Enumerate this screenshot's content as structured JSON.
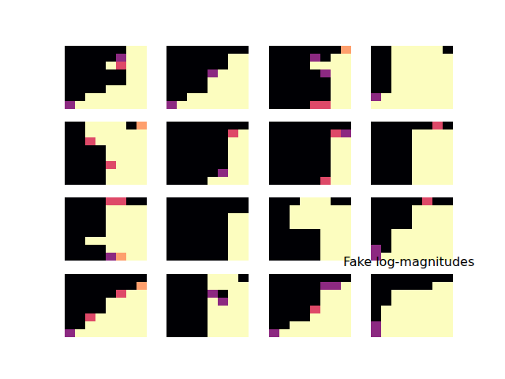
{
  "chart_data": {
    "type": "heatmap",
    "title": "Fake log-magnitudes",
    "tick_labels": false,
    "color": "magma",
    "value_range": [
      0,
      1
    ],
    "panels": [
      [
        [
          0,
          0,
          0,
          0,
          0,
          0,
          1,
          1
        ],
        [
          0,
          0,
          0,
          0,
          0,
          0.4,
          1,
          1
        ],
        [
          0,
          0,
          0,
          0,
          1,
          0.6,
          1,
          1
        ],
        [
          0,
          0,
          0,
          0,
          0,
          0,
          1,
          1
        ],
        [
          0,
          0,
          0,
          0,
          0,
          0,
          1,
          1
        ],
        [
          0,
          0,
          0,
          0,
          1,
          1,
          1,
          1
        ],
        [
          0,
          0,
          1,
          1,
          1,
          1,
          1,
          1
        ],
        [
          0.4,
          1,
          1,
          1,
          1,
          1,
          1,
          1
        ]
      ],
      [
        [
          0,
          0,
          0,
          0,
          0,
          0,
          0,
          0
        ],
        [
          0,
          0,
          0,
          0,
          0,
          0,
          1,
          1
        ],
        [
          0,
          0,
          0,
          0,
          0,
          0,
          1,
          1
        ],
        [
          0,
          0,
          0,
          0,
          0.4,
          1,
          1,
          1
        ],
        [
          0,
          0,
          0,
          0,
          1,
          1,
          1,
          1
        ],
        [
          0,
          0,
          0,
          0,
          1,
          1,
          1,
          1
        ],
        [
          0,
          0,
          1,
          1,
          1,
          1,
          1,
          1
        ],
        [
          0.4,
          1,
          1,
          1,
          1,
          1,
          1,
          1
        ]
      ],
      [
        [
          0,
          0,
          0,
          0,
          0,
          0,
          0,
          0.8
        ],
        [
          0,
          0,
          0,
          0,
          0.4,
          0,
          1,
          1
        ],
        [
          0,
          0,
          0,
          0,
          1,
          1,
          1,
          1
        ],
        [
          0,
          0,
          0,
          0,
          0,
          0.4,
          1,
          1
        ],
        [
          0,
          0,
          0,
          0,
          0,
          0,
          1,
          1
        ],
        [
          0,
          0,
          0,
          0,
          0,
          0,
          1,
          1
        ],
        [
          0,
          0,
          0,
          0,
          0,
          0,
          1,
          1
        ],
        [
          0,
          0,
          0,
          0,
          0.6,
          0.6,
          1,
          1
        ]
      ],
      [
        [
          0,
          0,
          1,
          1,
          1,
          1,
          1,
          0
        ],
        [
          0,
          0,
          1,
          1,
          1,
          1,
          1,
          1
        ],
        [
          0,
          0,
          1,
          1,
          1,
          1,
          1,
          1
        ],
        [
          0,
          0,
          1,
          1,
          1,
          1,
          1,
          1
        ],
        [
          0,
          0,
          1,
          1,
          1,
          1,
          1,
          1
        ],
        [
          0,
          0,
          1,
          1,
          1,
          1,
          1,
          1
        ],
        [
          0.4,
          1,
          1,
          1,
          1,
          1,
          1,
          1
        ],
        [
          1,
          1,
          1,
          1,
          1,
          1,
          1,
          1
        ]
      ],
      [
        [
          0,
          0,
          1,
          1,
          1,
          1,
          0,
          0.8
        ],
        [
          0,
          0,
          1,
          1,
          1,
          1,
          1,
          1
        ],
        [
          0,
          0,
          0.6,
          1,
          1,
          1,
          1,
          1
        ],
        [
          0,
          0,
          0,
          0,
          1,
          1,
          1,
          1
        ],
        [
          0,
          0,
          0,
          0,
          1,
          1,
          1,
          1
        ],
        [
          0,
          0,
          0,
          0,
          0.6,
          1,
          1,
          1
        ],
        [
          0,
          0,
          0,
          0,
          1,
          1,
          1,
          1
        ],
        [
          0,
          0,
          0,
          0,
          1,
          1,
          1,
          1
        ]
      ],
      [
        [
          0,
          0,
          0,
          0,
          0,
          0,
          0,
          0
        ],
        [
          0,
          0,
          0,
          0,
          0,
          0,
          0.6,
          1
        ],
        [
          0,
          0,
          0,
          0,
          0,
          0,
          1,
          1
        ],
        [
          0,
          0,
          0,
          0,
          0,
          0,
          1,
          1
        ],
        [
          0,
          0,
          0,
          0,
          0,
          0,
          1,
          1
        ],
        [
          0,
          0,
          0,
          0,
          0,
          0,
          1,
          1
        ],
        [
          0,
          0,
          0,
          0,
          0,
          0.4,
          1,
          1
        ],
        [
          0,
          0,
          0,
          0,
          1,
          1,
          1,
          1
        ]
      ],
      [
        [
          0,
          0,
          0,
          0,
          0,
          0,
          0,
          0
        ],
        [
          0,
          0,
          0,
          0,
          0,
          0,
          0.6,
          0.4
        ],
        [
          0,
          0,
          0,
          0,
          0,
          0,
          1,
          1
        ],
        [
          0,
          0,
          0,
          0,
          0,
          0,
          1,
          1
        ],
        [
          0,
          0,
          0,
          0,
          0,
          0,
          1,
          1
        ],
        [
          0,
          0,
          0,
          0,
          0,
          0,
          1,
          1
        ],
        [
          0,
          0,
          0,
          0,
          0,
          0,
          1,
          1
        ],
        [
          0,
          0,
          0,
          0,
          0,
          0.6,
          1,
          1
        ]
      ],
      [
        [
          0,
          0,
          0,
          0,
          0,
          0,
          0.6,
          0
        ],
        [
          0,
          0,
          0,
          0,
          1,
          1,
          1,
          1
        ],
        [
          0,
          0,
          0,
          0,
          1,
          1,
          1,
          1
        ],
        [
          0,
          0,
          0,
          0,
          1,
          1,
          1,
          1
        ],
        [
          0,
          0,
          0,
          0,
          1,
          1,
          1,
          1
        ],
        [
          0,
          0,
          0,
          0,
          1,
          1,
          1,
          1
        ],
        [
          0,
          0,
          0,
          0,
          1,
          1,
          1,
          1
        ],
        [
          0,
          0,
          0,
          0,
          1,
          1,
          1,
          1
        ]
      ],
      [
        [
          0,
          0,
          0,
          0,
          0.6,
          0.6,
          0,
          0
        ],
        [
          0,
          0,
          0,
          0,
          1,
          1,
          1,
          1
        ],
        [
          0,
          0,
          0,
          0,
          1,
          1,
          1,
          1
        ],
        [
          0,
          0,
          0,
          0,
          1,
          1,
          1,
          1
        ],
        [
          0,
          0,
          0,
          0,
          1,
          1,
          1,
          1
        ],
        [
          0,
          0,
          1,
          1,
          1,
          1,
          1,
          1
        ],
        [
          0,
          0,
          0,
          0,
          1,
          1,
          1,
          1
        ],
        [
          0,
          0,
          0,
          0,
          0.4,
          0.8,
          1,
          1
        ]
      ],
      [
        [
          0,
          0,
          0,
          0,
          0,
          0,
          0,
          0
        ],
        [
          0,
          0,
          0,
          0,
          0,
          0,
          0,
          0
        ],
        [
          0,
          0,
          0,
          0,
          0,
          0,
          1,
          1
        ],
        [
          0,
          0,
          0,
          0,
          0,
          0,
          1,
          1
        ],
        [
          0,
          0,
          0,
          0,
          0,
          0,
          1,
          1
        ],
        [
          0,
          0,
          0,
          0,
          0,
          0,
          1,
          1
        ],
        [
          0,
          0,
          0,
          0,
          0,
          0,
          1,
          1
        ],
        [
          0,
          0,
          0,
          0,
          0,
          0,
          1,
          1
        ]
      ],
      [
        [
          0,
          0,
          0,
          1,
          1,
          1,
          0,
          0
        ],
        [
          0,
          0,
          1,
          1,
          1,
          1,
          1,
          1
        ],
        [
          0,
          0,
          1,
          1,
          1,
          1,
          1,
          1
        ],
        [
          0,
          0,
          1,
          1,
          1,
          1,
          1,
          1
        ],
        [
          0,
          0,
          0,
          0,
          0,
          1,
          1,
          1
        ],
        [
          0,
          0,
          0,
          0,
          0,
          1,
          1,
          1
        ],
        [
          0,
          0,
          0,
          0,
          0,
          1,
          1,
          1
        ],
        [
          0,
          0,
          0,
          0,
          0,
          1,
          1,
          1
        ]
      ],
      [
        [
          0,
          0,
          0,
          0,
          0,
          0.6,
          0,
          0
        ],
        [
          0,
          0,
          0,
          0,
          1,
          1,
          1,
          1
        ],
        [
          0,
          0,
          0,
          0,
          1,
          1,
          1,
          1
        ],
        [
          0,
          0,
          0,
          0,
          1,
          1,
          1,
          1
        ],
        [
          0,
          0,
          1,
          1,
          1,
          1,
          1,
          1
        ],
        [
          0,
          0,
          1,
          1,
          1,
          1,
          1,
          1
        ],
        [
          0.4,
          0,
          1,
          1,
          1,
          1,
          1,
          1
        ],
        [
          0.4,
          1,
          1,
          1,
          1,
          1,
          1,
          1
        ]
      ],
      [
        [
          0,
          0,
          0,
          0,
          0,
          0,
          0,
          0
        ],
        [
          0,
          0,
          0,
          0,
          0,
          0,
          0,
          0.8
        ],
        [
          0,
          0,
          0,
          0,
          0,
          0.6,
          1,
          1
        ],
        [
          0,
          0,
          0,
          0,
          1,
          1,
          1,
          1
        ],
        [
          0,
          0,
          0,
          0,
          1,
          1,
          1,
          1
        ],
        [
          0,
          0,
          0.6,
          1,
          1,
          1,
          1,
          1
        ],
        [
          0,
          0,
          1,
          1,
          1,
          1,
          1,
          1
        ],
        [
          0.4,
          1,
          1,
          1,
          1,
          1,
          1,
          1
        ]
      ],
      [
        [
          0,
          0,
          0,
          0,
          1,
          1,
          1,
          0
        ],
        [
          0,
          0,
          0,
          0,
          1,
          1,
          1,
          1
        ],
        [
          0,
          0,
          0,
          0,
          0.4,
          0,
          1,
          1
        ],
        [
          0,
          0,
          0,
          0,
          1,
          0.4,
          1,
          1
        ],
        [
          0,
          0,
          0,
          0,
          1,
          1,
          1,
          1
        ],
        [
          0,
          0,
          0,
          0,
          1,
          1,
          1,
          1
        ],
        [
          0,
          0,
          0,
          0,
          1,
          1,
          1,
          1
        ],
        [
          0,
          0,
          0,
          0,
          1,
          1,
          1,
          1
        ]
      ],
      [
        [
          0,
          0,
          0,
          0,
          0,
          0,
          0,
          0
        ],
        [
          0,
          0,
          0,
          0,
          0,
          0.4,
          0.4,
          1
        ],
        [
          0,
          0,
          0,
          0,
          0,
          1,
          1,
          1
        ],
        [
          0,
          0,
          0,
          0,
          0,
          1,
          1,
          1
        ],
        [
          0,
          0,
          0,
          0,
          0.6,
          1,
          1,
          1
        ],
        [
          0,
          0,
          0,
          0,
          1,
          1,
          1,
          1
        ],
        [
          0,
          0,
          1,
          1,
          1,
          1,
          1,
          1
        ],
        [
          0.4,
          1,
          1,
          1,
          1,
          1,
          1,
          1
        ]
      ],
      [
        [
          0,
          0,
          0,
          0,
          0,
          0,
          0,
          0
        ],
        [
          0,
          0,
          0,
          0,
          0,
          0,
          1,
          1
        ],
        [
          0,
          0,
          1,
          1,
          1,
          1,
          1,
          1
        ],
        [
          0,
          0,
          1,
          1,
          1,
          1,
          1,
          1
        ],
        [
          0,
          1,
          1,
          1,
          1,
          1,
          1,
          1
        ],
        [
          0,
          1,
          1,
          1,
          1,
          1,
          1,
          1
        ],
        [
          0.4,
          1,
          1,
          1,
          1,
          1,
          1,
          1
        ],
        [
          0.4,
          1,
          1,
          1,
          1,
          1,
          1,
          1
        ]
      ]
    ]
  }
}
